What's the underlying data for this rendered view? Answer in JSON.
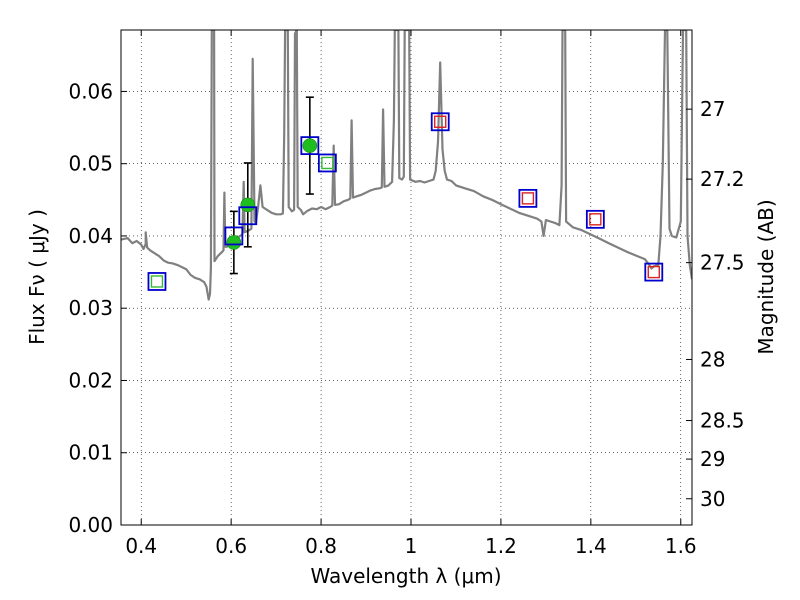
{
  "chart_data": {
    "type": "scatter",
    "xlabel": "Wavelength  λ (μm)",
    "ylabel": "Flux  Fν  ( μJy )",
    "y2label": "Magnitude (AB)",
    "xlim": [
      0.355,
      1.625
    ],
    "ylim": [
      0.0,
      0.0685
    ],
    "grid": true,
    "x_ticks": [
      0.4,
      0.6,
      0.8,
      1.0,
      1.2,
      1.4,
      1.6
    ],
    "x_tick_labels": [
      "0.4",
      "0.6",
      "0.8",
      "1",
      "1.2",
      "1.4",
      "1.6"
    ],
    "y_ticks": [
      0.0,
      0.01,
      0.02,
      0.03,
      0.04,
      0.05,
      0.06
    ],
    "y_tick_labels": [
      "0.00",
      "0.01",
      "0.02",
      "0.03",
      "0.04",
      "0.05",
      "0.06"
    ],
    "y2_ticks": [
      {
        "label": "27",
        "mag": 27.0
      },
      {
        "label": "27.2",
        "mag": 27.2
      },
      {
        "label": "27.5",
        "mag": 27.5
      },
      {
        "label": "28",
        "mag": 28.0
      },
      {
        "label": "28.5",
        "mag": 28.5
      },
      {
        "label": "29",
        "mag": 29.0
      },
      {
        "label": "30",
        "mag": 30.0
      }
    ],
    "colors": {
      "spectrum": "#808080",
      "observed": "#1fbd1f",
      "observed_edge": "#118811",
      "model_box": "#0000cc",
      "inner_green": "#33bb33",
      "inner_red": "#dd2222",
      "errorbar": "#000000"
    },
    "observed_points": [
      {
        "x": 0.606,
        "y": 0.0391,
        "err": 0.0043
      },
      {
        "x": 0.637,
        "y": 0.0443,
        "err": 0.0058
      },
      {
        "x": 0.775,
        "y": 0.0525,
        "err": 0.0067
      }
    ],
    "model_squares": [
      {
        "x": 0.435,
        "y": 0.0337,
        "inner": "green"
      },
      {
        "x": 0.606,
        "y": 0.04,
        "inner": "none"
      },
      {
        "x": 0.637,
        "y": 0.0428,
        "inner": "none"
      },
      {
        "x": 0.775,
        "y": 0.0525,
        "inner": "none"
      },
      {
        "x": 0.814,
        "y": 0.0501,
        "inner": "green"
      },
      {
        "x": 1.065,
        "y": 0.0558,
        "inner": "red"
      },
      {
        "x": 1.26,
        "y": 0.0452,
        "inner": "red"
      },
      {
        "x": 1.41,
        "y": 0.0423,
        "inner": "red"
      },
      {
        "x": 1.54,
        "y": 0.035,
        "inner": "red"
      }
    ],
    "spectrum": [
      [
        0.355,
        0.0395
      ],
      [
        0.37,
        0.0397
      ],
      [
        0.38,
        0.039
      ],
      [
        0.39,
        0.0393
      ],
      [
        0.4,
        0.0388
      ],
      [
        0.405,
        0.0382
      ],
      [
        0.41,
        0.0389
      ],
      [
        0.41,
        0.0405
      ],
      [
        0.413,
        0.0384
      ],
      [
        0.42,
        0.038
      ],
      [
        0.43,
        0.0376
      ],
      [
        0.44,
        0.0372
      ],
      [
        0.45,
        0.0366
      ],
      [
        0.46,
        0.0363
      ],
      [
        0.47,
        0.0362
      ],
      [
        0.48,
        0.036
      ],
      [
        0.49,
        0.0357
      ],
      [
        0.5,
        0.0354
      ],
      [
        0.51,
        0.0346
      ],
      [
        0.52,
        0.0342
      ],
      [
        0.53,
        0.034
      ],
      [
        0.54,
        0.0336
      ],
      [
        0.545,
        0.033
      ],
      [
        0.55,
        0.0312
      ],
      [
        0.553,
        0.032
      ],
      [
        0.555,
        0.0355
      ],
      [
        0.557,
        0.0685
      ],
      [
        0.562,
        0.0685
      ],
      [
        0.563,
        0.0365
      ],
      [
        0.57,
        0.0372
      ],
      [
        0.58,
        0.0378
      ],
      [
        0.583,
        0.038
      ],
      [
        0.585,
        0.046
      ],
      [
        0.587,
        0.0385
      ],
      [
        0.59,
        0.0385
      ],
      [
        0.6,
        0.039
      ],
      [
        0.61,
        0.0395
      ],
      [
        0.62,
        0.04
      ],
      [
        0.625,
        0.0402
      ],
      [
        0.628,
        0.0475
      ],
      [
        0.63,
        0.0405
      ],
      [
        0.64,
        0.0408
      ],
      [
        0.645,
        0.041
      ],
      [
        0.648,
        0.0645
      ],
      [
        0.652,
        0.042
      ],
      [
        0.655,
        0.0418
      ],
      [
        0.66,
        0.044
      ],
      [
        0.665,
        0.047
      ],
      [
        0.67,
        0.044
      ],
      [
        0.68,
        0.0436
      ],
      [
        0.69,
        0.0432
      ],
      [
        0.7,
        0.043
      ],
      [
        0.71,
        0.043
      ],
      [
        0.715,
        0.0431
      ],
      [
        0.718,
        0.054
      ],
      [
        0.72,
        0.0685
      ],
      [
        0.726,
        0.0685
      ],
      [
        0.728,
        0.044
      ],
      [
        0.735,
        0.0434
      ],
      [
        0.74,
        0.0436
      ],
      [
        0.742,
        0.068
      ],
      [
        0.746,
        0.0685
      ],
      [
        0.748,
        0.044
      ],
      [
        0.755,
        0.0436
      ],
      [
        0.76,
        0.043
      ],
      [
        0.77,
        0.0435
      ],
      [
        0.78,
        0.0438
      ],
      [
        0.79,
        0.0437
      ],
      [
        0.8,
        0.044
      ],
      [
        0.81,
        0.0437
      ],
      [
        0.82,
        0.044
      ],
      [
        0.825,
        0.0442
      ],
      [
        0.828,
        0.0525
      ],
      [
        0.831,
        0.0443
      ],
      [
        0.84,
        0.0444
      ],
      [
        0.85,
        0.0448
      ],
      [
        0.86,
        0.045
      ],
      [
        0.865,
        0.0452
      ],
      [
        0.868,
        0.056
      ],
      [
        0.871,
        0.0453
      ],
      [
        0.88,
        0.0455
      ],
      [
        0.89,
        0.0457
      ],
      [
        0.9,
        0.046
      ],
      [
        0.91,
        0.0463
      ],
      [
        0.92,
        0.0465
      ],
      [
        0.93,
        0.0466
      ],
      [
        0.935,
        0.0467
      ],
      [
        0.938,
        0.0575
      ],
      [
        0.941,
        0.0468
      ],
      [
        0.95,
        0.047
      ],
      [
        0.958,
        0.0475
      ],
      [
        0.962,
        0.056
      ],
      [
        0.964,
        0.0685
      ],
      [
        0.972,
        0.0685
      ],
      [
        0.974,
        0.048
      ],
      [
        0.98,
        0.0478
      ],
      [
        0.984,
        0.0482
      ],
      [
        0.986,
        0.0685
      ],
      [
        0.996,
        0.0685
      ],
      [
        0.998,
        0.0478
      ],
      [
        1.01,
        0.0475
      ],
      [
        1.02,
        0.0476
      ],
      [
        1.03,
        0.0474
      ],
      [
        1.04,
        0.0476
      ],
      [
        1.05,
        0.0478
      ],
      [
        1.055,
        0.049
      ],
      [
        1.06,
        0.053
      ],
      [
        1.065,
        0.064
      ],
      [
        1.07,
        0.052
      ],
      [
        1.075,
        0.049
      ],
      [
        1.08,
        0.0478
      ],
      [
        1.09,
        0.0476
      ],
      [
        1.1,
        0.047
      ],
      [
        1.12,
        0.0466
      ],
      [
        1.14,
        0.0462
      ],
      [
        1.16,
        0.0455
      ],
      [
        1.18,
        0.045
      ],
      [
        1.2,
        0.0444
      ],
      [
        1.22,
        0.0438
      ],
      [
        1.24,
        0.0432
      ],
      [
        1.26,
        0.0428
      ],
      [
        1.28,
        0.0424
      ],
      [
        1.29,
        0.042
      ],
      [
        1.295,
        0.04
      ],
      [
        1.3,
        0.0422
      ],
      [
        1.31,
        0.042
      ],
      [
        1.32,
        0.0418
      ],
      [
        1.33,
        0.0415
      ],
      [
        1.335,
        0.047
      ],
      [
        1.337,
        0.0685
      ],
      [
        1.343,
        0.0685
      ],
      [
        1.345,
        0.042
      ],
      [
        1.36,
        0.0412
      ],
      [
        1.38,
        0.0408
      ],
      [
        1.4,
        0.0402
      ],
      [
        1.42,
        0.0396
      ],
      [
        1.44,
        0.039
      ],
      [
        1.46,
        0.0384
      ],
      [
        1.48,
        0.0378
      ],
      [
        1.5,
        0.0373
      ],
      [
        1.52,
        0.0368
      ],
      [
        1.53,
        0.036
      ],
      [
        1.535,
        0.0355
      ],
      [
        1.54,
        0.0358
      ],
      [
        1.55,
        0.036
      ],
      [
        1.555,
        0.04
      ],
      [
        1.56,
        0.05
      ],
      [
        1.565,
        0.0685
      ],
      [
        1.57,
        0.0685
      ],
      [
        1.575,
        0.041
      ],
      [
        1.58,
        0.04
      ],
      [
        1.59,
        0.0398
      ],
      [
        1.6,
        0.042
      ],
      [
        1.605,
        0.0685
      ],
      [
        1.612,
        0.0685
      ],
      [
        1.615,
        0.04
      ],
      [
        1.62,
        0.036
      ],
      [
        1.625,
        0.034
      ]
    ]
  }
}
